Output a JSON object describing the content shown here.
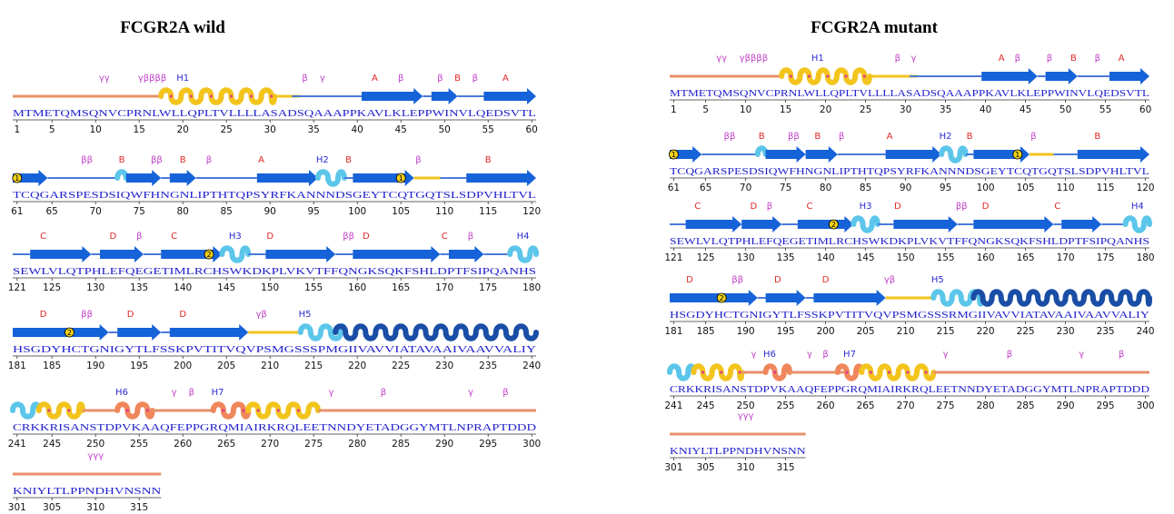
{
  "panels": [
    {
      "title": "FCGR2A wild",
      "rows": [
        {
          "sequence": "MTMETQMSQNVCPRNLWLLQPLTVLLLLASADSQAAAPPKAVLKLEPPWINVLQEDSVTL",
          "ticks": [
            1,
            5,
            10,
            15,
            20,
            25,
            30,
            35,
            40,
            45,
            50,
            55,
            60
          ],
          "labels": [
            "γγ",
            "γββββ",
            "H1",
            "β",
            "γ",
            "A",
            "β",
            "β",
            "B",
            "β",
            "A"
          ]
        },
        {
          "sequence": "TCQGARSPESDSIQWFHNGNLIPTHTQPSYRFKANNNDSGEYTCQTGQTSLSDPVHLTVL",
          "ticks": [
            61,
            65,
            70,
            75,
            80,
            85,
            90,
            95,
            100,
            105,
            110,
            115,
            120
          ],
          "labels": [
            "1",
            "ββ",
            "B",
            "ββ",
            "B",
            "β",
            "A",
            "H2",
            "B",
            "1",
            "β",
            "B"
          ]
        },
        {
          "sequence": "SEWLVLQTPHLEFQEGETIMLRCHSWKDKPLVKVTFFQNGKSQKFSHLDPTFSIPQANHS",
          "ticks": [
            121,
            125,
            130,
            135,
            140,
            145,
            150,
            155,
            160,
            165,
            170,
            175,
            180
          ],
          "labels": [
            "C",
            "D",
            "β",
            "C",
            "2",
            "H3",
            "D",
            "ββ",
            "D",
            "C",
            "β",
            "H4"
          ]
        },
        {
          "sequence": "HSGDYHCTGNIGYTLFSSKPVTITVQVPSMGSSSPMGIIVAVVIATAVAAIVAAVVALIY",
          "ticks": [
            181,
            185,
            190,
            195,
            200,
            205,
            210,
            215,
            220,
            225,
            230,
            235,
            240
          ],
          "labels": [
            "D",
            "2",
            "ββ",
            "D",
            "D",
            "γβ",
            "H5"
          ]
        },
        {
          "sequence": "CRKKRISANSTDPVKAAQFEPPGRQMIAIRKRQLEETNNDYETADGGYMTLNPRAPTDDD",
          "ticks": [
            241,
            245,
            250,
            255,
            260,
            265,
            270,
            275,
            280,
            285,
            290,
            295,
            300
          ],
          "labels": [
            "H6",
            "γ",
            "β",
            "H7",
            "γ",
            "β",
            "γ",
            "β"
          ]
        },
        {
          "sequence": "KNIYLTLPPNDHVNSNN",
          "ticks": [
            301,
            305,
            310,
            315
          ],
          "labels": [
            "γγγ"
          ]
        }
      ]
    },
    {
      "title": "FCGR2A mutant",
      "rows": [
        {
          "sequence": "MTMETQMSQNVCPRNLWLLQPLTVLLLLASADSQAAAPPKAVLKLEPPWINVLQEDSVTL",
          "ticks": [
            1,
            5,
            10,
            15,
            20,
            25,
            30,
            35,
            40,
            45,
            50,
            55,
            60
          ],
          "labels": [
            "γγ",
            "γββββ",
            "H1",
            "β",
            "γ",
            "A",
            "β",
            "β",
            "B",
            "β",
            "A"
          ]
        },
        {
          "sequence": "TCQGARSPESDSIQWFHNGNLIPTHTQPSYRFKANNNDSGEYTCQTGQTSLSDPVHLTVL",
          "ticks": [
            61,
            65,
            70,
            75,
            80,
            85,
            90,
            95,
            100,
            105,
            110,
            115,
            120
          ],
          "labels": [
            "1",
            "ββ",
            "B",
            "ββ",
            "B",
            "β",
            "A",
            "H2",
            "B",
            "1",
            "β",
            "B"
          ]
        },
        {
          "sequence": "SEWLVLQTPHLEFQEGETIMLRCHSWKDKPLVKVTFFQNGKSQKFSHLDPTFSIPQANHS",
          "ticks": [
            121,
            125,
            130,
            135,
            140,
            145,
            150,
            155,
            160,
            165,
            170,
            175,
            180
          ],
          "labels": [
            "C",
            "D",
            "β",
            "C",
            "2",
            "H3",
            "D",
            "ββ",
            "D",
            "C",
            "H4"
          ]
        },
        {
          "sequence": "HSGDYHCTGNIGYTLFSSKPVTITVQVPSMGSSSRMGIIVAVVIATAVAAIVAAVVALIY",
          "ticks": [
            181,
            185,
            190,
            195,
            200,
            205,
            210,
            215,
            220,
            225,
            230,
            235,
            240
          ],
          "labels": [
            "D",
            "2",
            "ββ",
            "D",
            "D",
            "γβ",
            "H5"
          ]
        },
        {
          "sequence": "CRKKRISANSTDPVKAAQFEPPGRQMIAIRKRQLEETNNDYETADGGYMTLNPRAPTDDD",
          "ticks": [
            241,
            245,
            250,
            255,
            260,
            265,
            270,
            275,
            280,
            285,
            290,
            295,
            300
          ],
          "labels": [
            "γ",
            "H6",
            "γ",
            "β",
            "H7",
            "γ",
            "β",
            "γ",
            "β"
          ]
        },
        {
          "sequence": "KNIYLTLPPNDHVNSNN",
          "ticks": [
            301,
            305,
            310,
            315
          ],
          "labels": [
            "γγγ"
          ]
        }
      ]
    }
  ]
}
